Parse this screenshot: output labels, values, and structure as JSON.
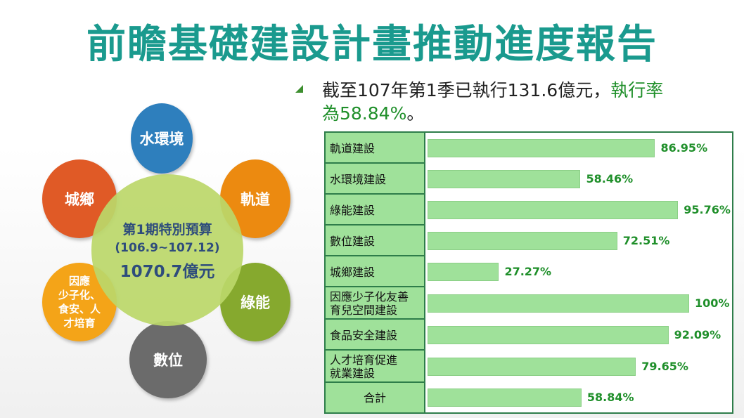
{
  "title": "前瞻基礎建設計畫推動進度報告",
  "summary": {
    "text_plain": "截至107年第1季已執行131.6億元，",
    "text_highlight1": "執行率",
    "text_highlight2": "為58.84%",
    "text_end": "。"
  },
  "diagram": {
    "center": {
      "line1": "第1期特別預算",
      "line2": "(106.9~107.12)",
      "line3": "1070.7億元"
    },
    "nodes": [
      {
        "label": "水環境",
        "color": "#2e7fbd"
      },
      {
        "label": "軌道",
        "color": "#ec8a10"
      },
      {
        "label": "綠能",
        "color": "#86a92e"
      },
      {
        "label": "數位",
        "color": "#6b6b6b"
      },
      {
        "label": "因應\n少子化、\n食安、人\n才培育",
        "color": "#f4a418"
      },
      {
        "label": "城鄉",
        "color": "#e05a26"
      }
    ]
  },
  "chart_data": {
    "type": "bar",
    "orientation": "horizontal",
    "categories": [
      "軌道建設",
      "水環境建設",
      "綠能建設",
      "數位建設",
      "城鄉建設",
      "因應少子化友善育兒空間建設",
      "食品安全建設",
      "人才培育促進就業建設",
      "合計"
    ],
    "category_display": [
      [
        "軌道建設"
      ],
      [
        "水環境建設"
      ],
      [
        "綠能建設"
      ],
      [
        "數位建設"
      ],
      [
        "城鄉建設"
      ],
      [
        "因應少子化友善",
        "育兒空間建設"
      ],
      [
        "食品安全建設"
      ],
      [
        "人才培育促進",
        "就業建設"
      ],
      [
        "合計"
      ]
    ],
    "values": [
      86.95,
      58.46,
      95.76,
      72.51,
      27.27,
      100,
      92.09,
      79.65,
      58.84
    ],
    "value_labels": [
      "86.95%",
      "58.46%",
      "95.76%",
      "72.51%",
      "27.27%",
      "100%",
      "92.09%",
      "79.65%",
      "58.84%"
    ],
    "xlim": [
      0,
      100
    ],
    "grid": false,
    "bar_color": "#9fe19a",
    "label_color": "#1f8f2a"
  }
}
